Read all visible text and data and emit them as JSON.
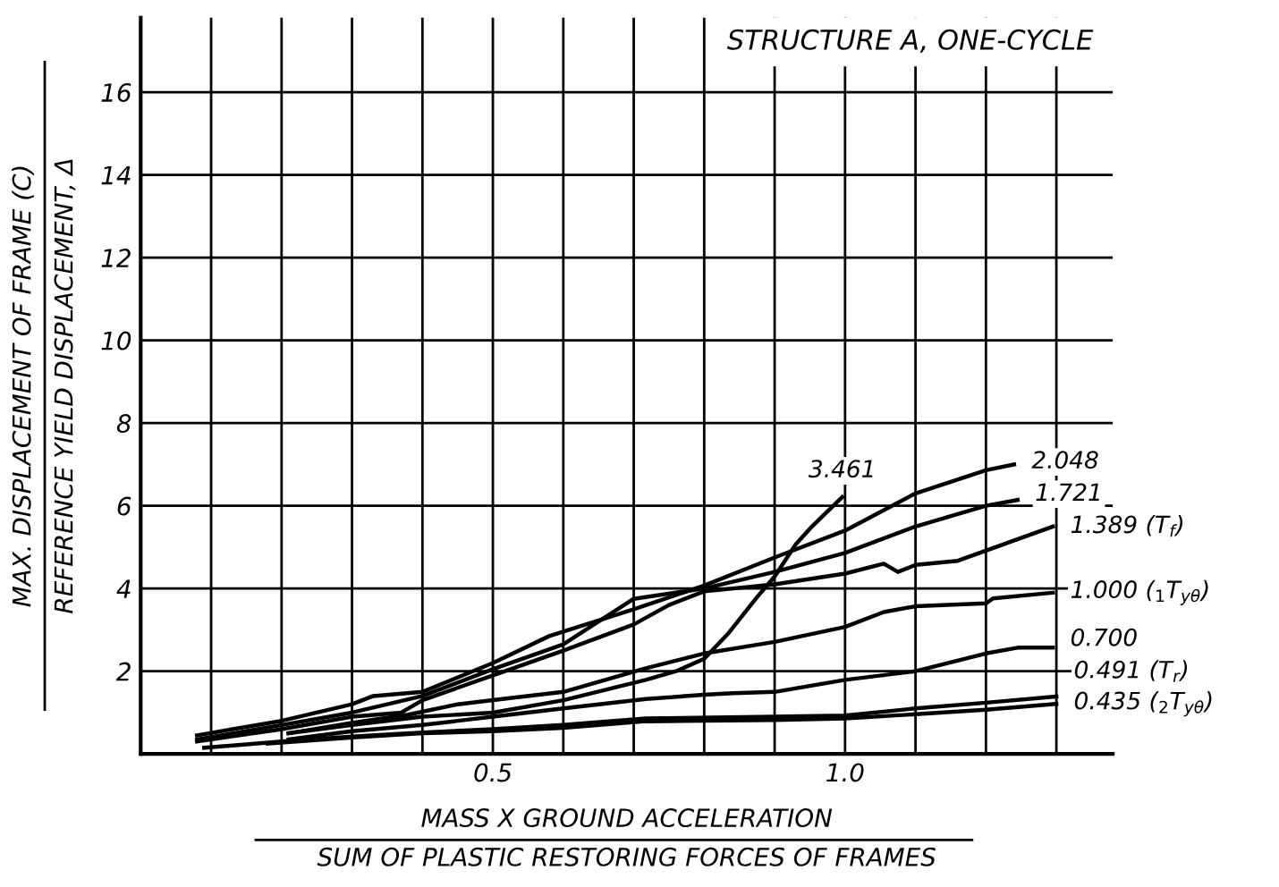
{
  "chart_data": {
    "type": "line",
    "title": "STRUCTURE A, ONE-CYCLE",
    "xlabel": "MASS X GROUND ACCELERATION\nSUM OF PLASTIC RESTORING FORCES OF FRAMES",
    "ylabel": "MAX. DISPLACEMENT OF FRAME (C)\nREFERENCE YIELD DISPLACEMENT, Δ",
    "xlim": [
      0,
      1.38
    ],
    "ylim": [
      0,
      17.8
    ],
    "xticks": [
      {
        "value": 0.1,
        "label": null
      },
      {
        "value": 0.2,
        "label": null
      },
      {
        "value": 0.3,
        "label": null
      },
      {
        "value": 0.4,
        "label": null
      },
      {
        "value": 0.5,
        "label": "0.5"
      },
      {
        "value": 0.6,
        "label": null
      },
      {
        "value": 0.7,
        "label": null
      },
      {
        "value": 0.8,
        "label": null
      },
      {
        "value": 0.9,
        "label": null
      },
      {
        "value": 1.0,
        "label": "1.0"
      },
      {
        "value": 1.1,
        "label": null
      },
      {
        "value": 1.2,
        "label": null
      },
      {
        "value": 1.3,
        "label": null
      }
    ],
    "yticks": [
      2,
      4,
      6,
      8,
      10,
      12,
      14,
      16
    ],
    "grid": true,
    "marker": "none",
    "line_style": "solid",
    "series": [
      {
        "name": "3.461",
        "color": "#000000",
        "x": [
          0.21,
          0.3,
          0.4,
          0.5,
          0.6,
          0.717,
          0.76,
          0.8,
          0.835,
          0.875,
          0.9,
          0.93,
          0.953,
          0.996
        ],
        "values": [
          0.5,
          0.7,
          0.9,
          1.0,
          1.3,
          1.79,
          2.0,
          2.3,
          2.93,
          3.79,
          4.29,
          5.07,
          5.5,
          6.21
        ]
      },
      {
        "name": "2.048",
        "color": "#000000",
        "x": [
          0.08,
          0.2,
          0.3,
          0.33,
          0.4,
          0.5,
          0.58,
          0.7,
          0.8,
          0.9,
          1.0,
          1.1,
          1.2,
          1.24
        ],
        "values": [
          0.45,
          0.8,
          1.2,
          1.4,
          1.5,
          2.2,
          2.85,
          3.5,
          4.07,
          4.75,
          5.4,
          6.3,
          6.86,
          7.0
        ]
      },
      {
        "name": "1.721",
        "color": "#000000",
        "x": [
          0.08,
          0.2,
          0.3,
          0.4,
          0.5,
          0.6,
          0.7,
          0.8,
          0.9,
          1.0,
          1.1,
          1.2,
          1.245
        ],
        "values": [
          0.35,
          0.7,
          1.0,
          1.4,
          2.05,
          2.65,
          3.75,
          4.0,
          4.4,
          4.86,
          5.5,
          6.0,
          6.14
        ]
      },
      {
        "name": "1.389 (T$_{f}$)",
        "color": "#000000",
        "x": [
          0.08,
          0.2,
          0.3,
          0.37,
          0.4,
          0.5,
          0.6,
          0.7,
          0.75,
          0.8,
          0.9,
          1.0,
          1.055,
          1.075,
          1.1,
          1.16,
          1.295
        ],
        "values": [
          0.3,
          0.6,
          0.9,
          1.0,
          1.3,
          1.9,
          2.5,
          3.13,
          3.6,
          3.93,
          4.1,
          4.36,
          4.6,
          4.4,
          4.57,
          4.67,
          5.5
        ]
      },
      {
        "name": "1.000 ($_{1}$T$_{yθ}$)",
        "color": "#000000",
        "x": [
          0.21,
          0.3,
          0.38,
          0.45,
          0.5,
          0.6,
          0.717,
          0.8,
          0.9,
          1.0,
          1.055,
          1.1,
          1.2,
          1.21,
          1.295
        ],
        "values": [
          0.5,
          0.75,
          0.95,
          1.2,
          1.3,
          1.5,
          2.07,
          2.43,
          2.71,
          3.07,
          3.43,
          3.57,
          3.64,
          3.76,
          3.9
        ]
      },
      {
        "name": "0.700",
        "color": "#000000",
        "x": [
          0.21,
          0.3,
          0.4,
          0.5,
          0.6,
          0.717,
          0.8,
          0.84,
          0.9,
          1.0,
          1.1,
          1.2,
          1.245,
          1.295
        ],
        "values": [
          0.35,
          0.55,
          0.7,
          0.9,
          1.1,
          1.33,
          1.43,
          1.47,
          1.5,
          1.79,
          2.0,
          2.43,
          2.57,
          2.57
        ]
      },
      {
        "name": "0.491 (T$_{r}$)",
        "color": "#000000",
        "x": [
          0.09,
          0.2,
          0.3,
          0.4,
          0.5,
          0.6,
          0.717,
          0.9,
          1.0,
          1.1,
          1.2,
          1.3
        ],
        "values": [
          0.15,
          0.3,
          0.42,
          0.52,
          0.6,
          0.7,
          0.86,
          0.9,
          0.93,
          1.1,
          1.24,
          1.39
        ]
      },
      {
        "name": "0.435 ($_{2}$T$_{yθ}$)",
        "color": "#000000",
        "x": [
          0.18,
          0.3,
          0.4,
          0.5,
          0.6,
          0.717,
          0.9,
          1.0,
          1.1,
          1.2,
          1.3
        ],
        "values": [
          0.25,
          0.4,
          0.5,
          0.55,
          0.63,
          0.79,
          0.82,
          0.86,
          0.96,
          1.07,
          1.21
        ]
      }
    ]
  }
}
